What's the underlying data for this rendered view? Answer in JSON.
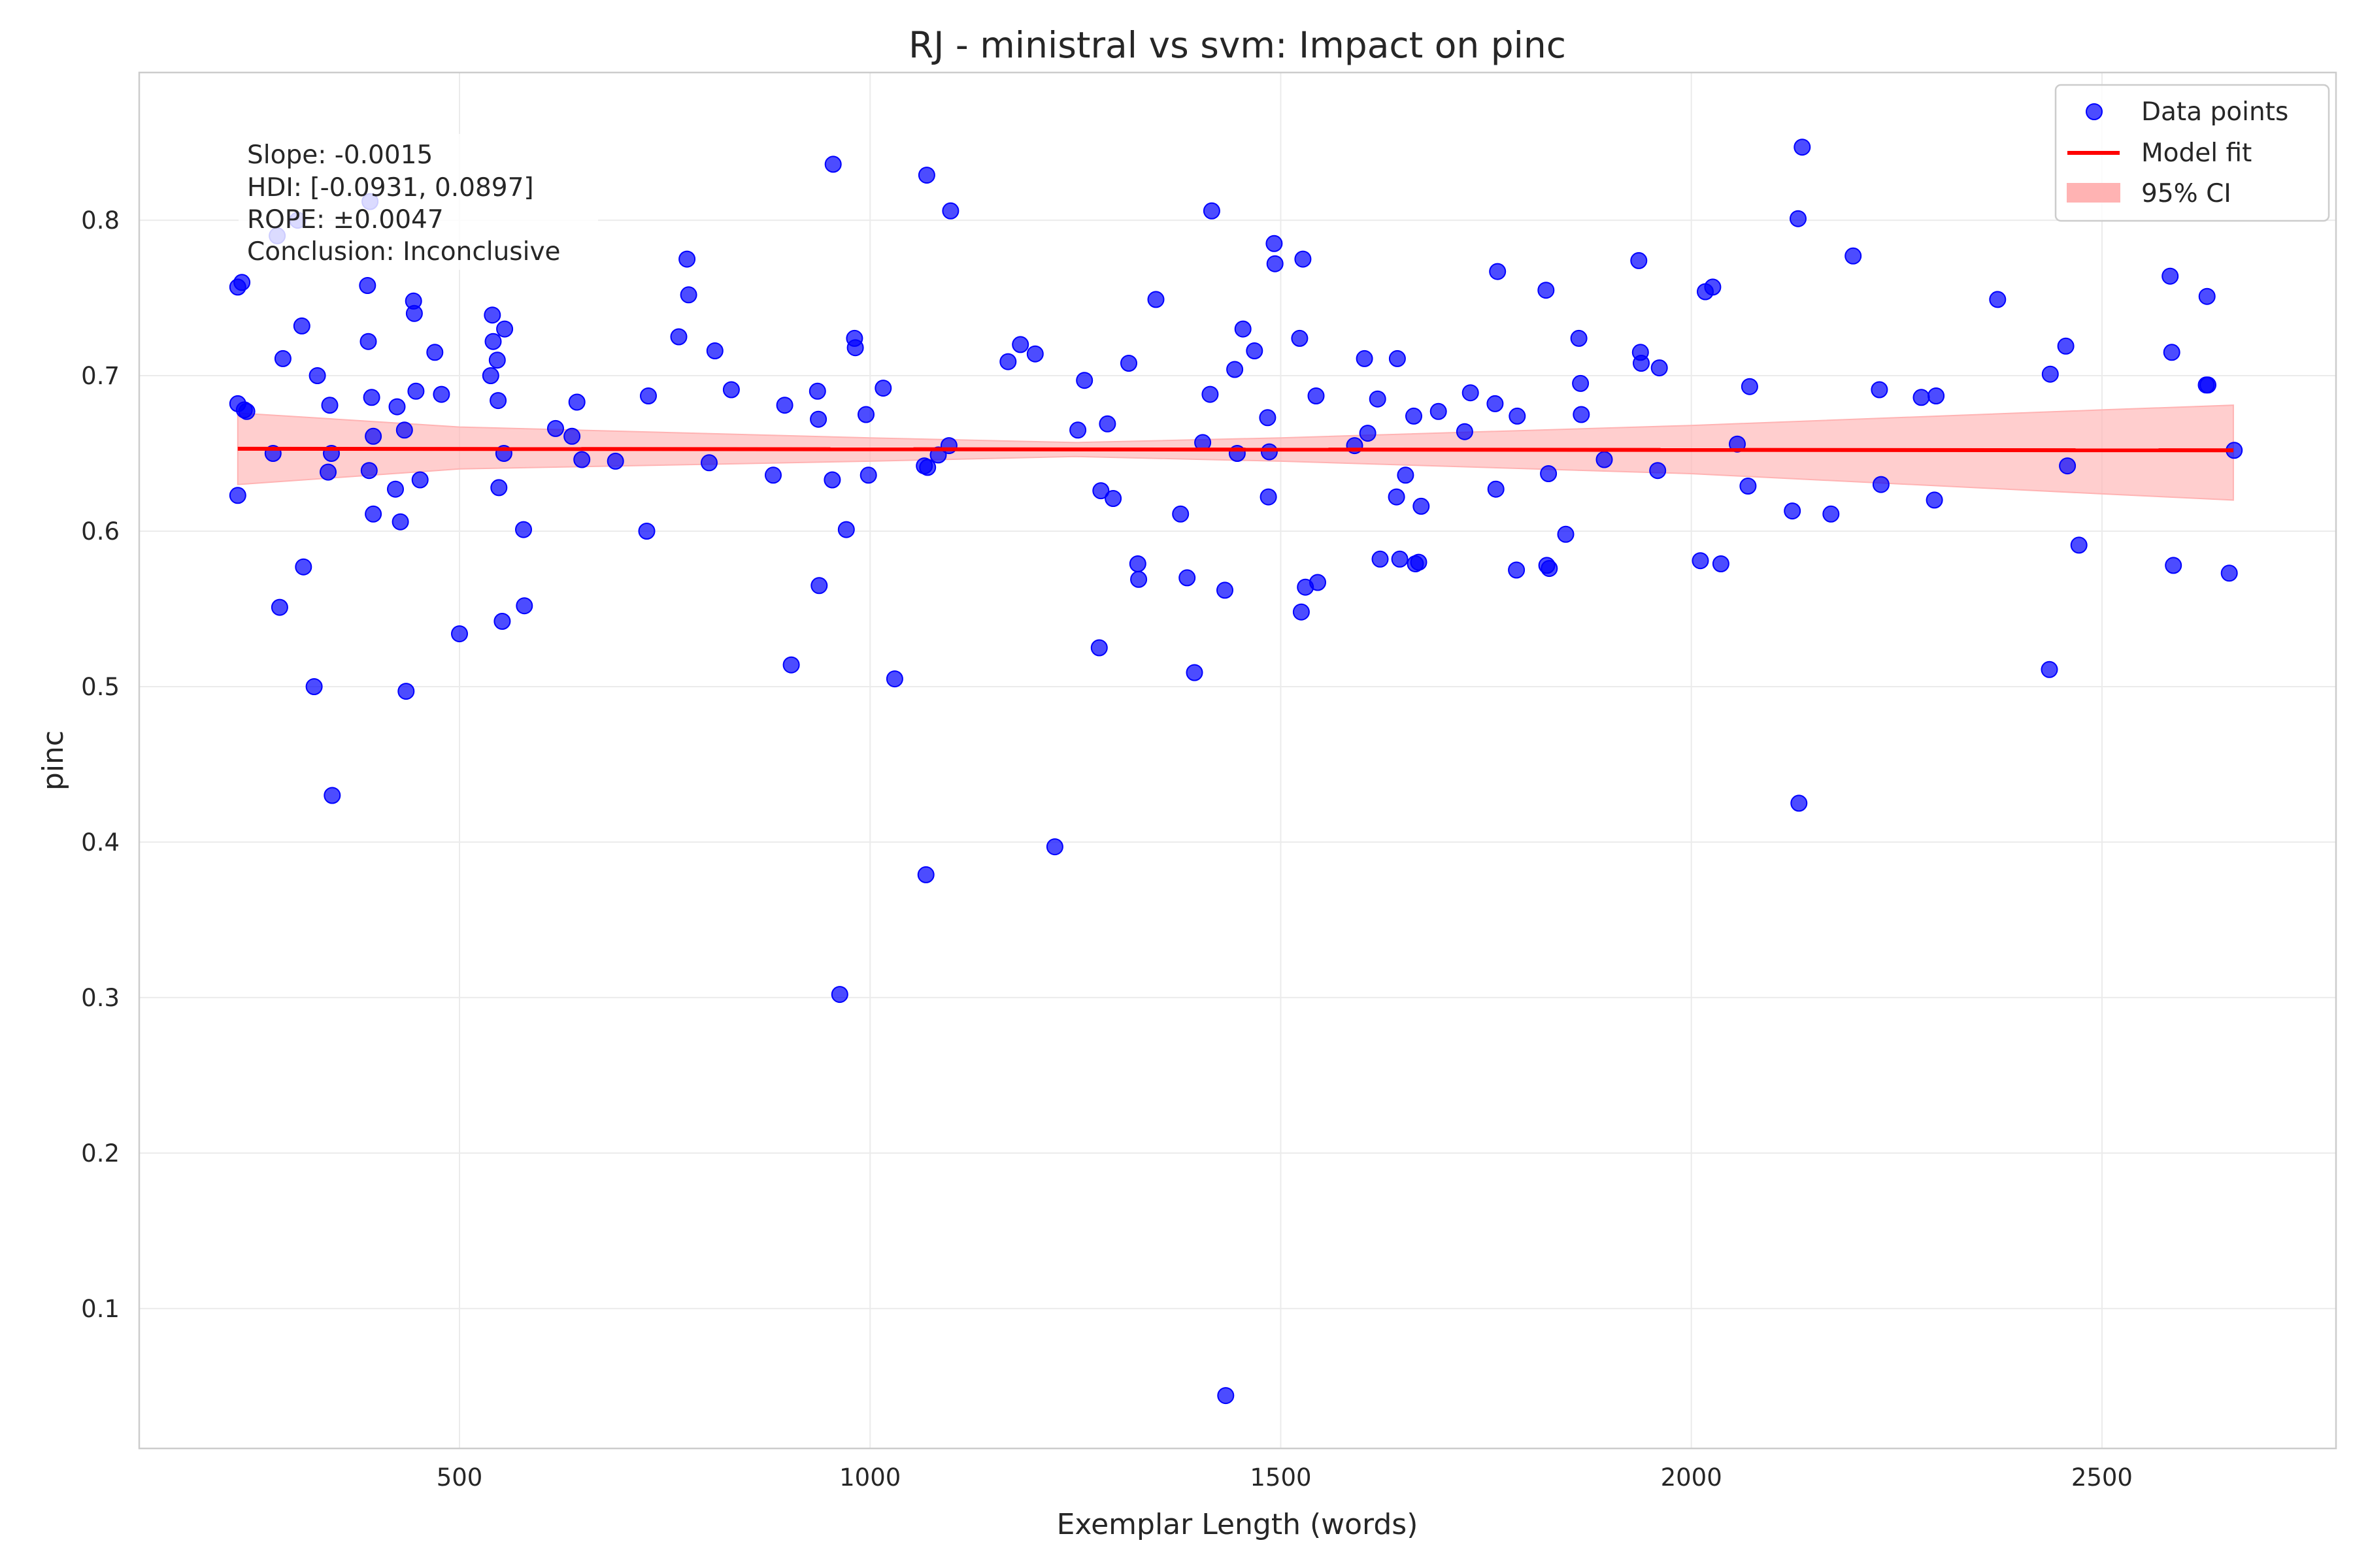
{
  "chart_data": {
    "type": "scatter",
    "title": "RJ - ministral vs svm: Impact on pinc",
    "xlabel": "Exemplar Length (words)",
    "ylabel": "pinc",
    "xlim": [
      110,
      2785
    ],
    "ylim": [
      0.01,
      0.895
    ],
    "x_ticks": [
      500,
      1000,
      1500,
      2000,
      2500
    ],
    "x_tick_labels": [
      "500",
      "1000",
      "1500",
      "2000",
      "2500"
    ],
    "y_ticks": [
      0.1,
      0.2,
      0.3,
      0.4,
      0.5,
      0.6,
      0.7,
      0.8
    ],
    "y_tick_labels": [
      "0.1",
      "0.2",
      "0.3",
      "0.4",
      "0.5",
      "0.6",
      "0.7",
      "0.8"
    ],
    "grid": true,
    "legend_position": "top-right",
    "colors": {
      "points": "#0000ff",
      "fit": "#ff0000",
      "ci_fill": "#ffb3b3"
    },
    "legend": [
      {
        "label": "Data points",
        "kind": "point"
      },
      {
        "label": "Model fit",
        "kind": "line"
      },
      {
        "label": "95% CI",
        "kind": "band"
      }
    ],
    "annotation": [
      "Slope: -0.0015",
      "HDI: [-0.0931, 0.0897]",
      "ROPE: ±0.0047",
      "Conclusion: Inconclusive"
    ],
    "model_fit": {
      "x": [
        230,
        2660
      ],
      "y": [
        0.653,
        0.652
      ]
    },
    "ci_band": {
      "x": [
        230,
        500,
        1000,
        1250,
        1500,
        2000,
        2500,
        2660
      ],
      "lower": [
        0.63,
        0.64,
        0.645,
        0.648,
        0.645,
        0.637,
        0.624,
        0.62
      ],
      "upper": [
        0.676,
        0.667,
        0.66,
        0.657,
        0.66,
        0.668,
        0.678,
        0.681
      ]
    },
    "series": [
      {
        "name": "Data points",
        "points": [
          [
            230,
            0.757
          ],
          [
            235,
            0.76
          ],
          [
            238,
            0.678
          ],
          [
            241,
            0.677
          ],
          [
            230,
            0.682
          ],
          [
            230,
            0.623
          ],
          [
            273,
            0.65
          ],
          [
            281,
            0.551
          ],
          [
            285,
            0.711
          ],
          [
            278,
            0.79
          ],
          [
            303,
            0.8
          ],
          [
            308,
            0.732
          ],
          [
            310,
            0.577
          ],
          [
            323,
            0.5
          ],
          [
            327,
            0.7
          ],
          [
            340,
            0.638
          ],
          [
            342,
            0.681
          ],
          [
            344,
            0.65
          ],
          [
            345,
            0.43
          ],
          [
            388,
            0.758
          ],
          [
            389,
            0.722
          ],
          [
            390,
            0.639
          ],
          [
            391,
            0.812
          ],
          [
            393,
            0.686
          ],
          [
            395,
            0.611
          ],
          [
            395,
            0.661
          ],
          [
            422,
            0.627
          ],
          [
            424,
            0.68
          ],
          [
            428,
            0.606
          ],
          [
            433,
            0.665
          ],
          [
            435,
            0.497
          ],
          [
            444,
            0.748
          ],
          [
            445,
            0.74
          ],
          [
            447,
            0.69
          ],
          [
            452,
            0.633
          ],
          [
            470,
            0.715
          ],
          [
            478,
            0.688
          ],
          [
            500,
            0.534
          ],
          [
            540,
            0.739
          ],
          [
            541,
            0.722
          ],
          [
            538,
            0.7
          ],
          [
            546,
            0.71
          ],
          [
            547,
            0.684
          ],
          [
            548,
            0.628
          ],
          [
            552,
            0.542
          ],
          [
            554,
            0.65
          ],
          [
            555,
            0.73
          ],
          [
            578,
            0.601
          ],
          [
            579,
            0.552
          ],
          [
            617,
            0.666
          ],
          [
            637,
            0.661
          ],
          [
            643,
            0.683
          ],
          [
            649,
            0.646
          ],
          [
            690,
            0.645
          ],
          [
            728,
            0.6
          ],
          [
            730,
            0.687
          ],
          [
            767,
            0.725
          ],
          [
            777,
            0.775
          ],
          [
            779,
            0.752
          ],
          [
            804,
            0.644
          ],
          [
            811,
            0.716
          ],
          [
            831,
            0.691
          ],
          [
            882,
            0.636
          ],
          [
            896,
            0.681
          ],
          [
            904,
            0.514
          ],
          [
            936,
            0.69
          ],
          [
            937,
            0.672
          ],
          [
            938,
            0.565
          ],
          [
            954,
            0.633
          ],
          [
            955,
            0.836
          ],
          [
            963,
            0.302
          ],
          [
            971,
            0.601
          ],
          [
            981,
            0.724
          ],
          [
            982,
            0.718
          ],
          [
            995,
            0.675
          ],
          [
            998,
            0.636
          ],
          [
            1016,
            0.692
          ],
          [
            1030,
            0.505
          ],
          [
            1066,
            0.642
          ],
          [
            1070,
            0.641
          ],
          [
            1068,
            0.379
          ],
          [
            1069,
            0.829
          ],
          [
            1083,
            0.649
          ],
          [
            1096,
            0.655
          ],
          [
            1098,
            0.806
          ],
          [
            1168,
            0.709
          ],
          [
            1183,
            0.72
          ],
          [
            1201,
            0.714
          ],
          [
            1225,
            0.397
          ],
          [
            1253,
            0.665
          ],
          [
            1261,
            0.697
          ],
          [
            1279,
            0.525
          ],
          [
            1281,
            0.626
          ],
          [
            1289,
            0.669
          ],
          [
            1296,
            0.621
          ],
          [
            1315,
            0.708
          ],
          [
            1326,
            0.579
          ],
          [
            1327,
            0.569
          ],
          [
            1348,
            0.749
          ],
          [
            1378,
            0.611
          ],
          [
            1386,
            0.57
          ],
          [
            1395,
            0.509
          ],
          [
            1405,
            0.657
          ],
          [
            1414,
            0.688
          ],
          [
            1416,
            0.806
          ],
          [
            1432,
            0.562
          ],
          [
            1433,
            0.044
          ],
          [
            1444,
            0.704
          ],
          [
            1447,
            0.65
          ],
          [
            1454,
            0.73
          ],
          [
            1468,
            0.716
          ],
          [
            1484,
            0.673
          ],
          [
            1485,
            0.622
          ],
          [
            1486,
            0.651
          ],
          [
            1492,
            0.785
          ],
          [
            1493,
            0.772
          ],
          [
            1523,
            0.724
          ],
          [
            1525,
            0.548
          ],
          [
            1527,
            0.775
          ],
          [
            1530,
            0.564
          ],
          [
            1543,
            0.687
          ],
          [
            1545,
            0.567
          ],
          [
            1590,
            0.655
          ],
          [
            1602,
            0.711
          ],
          [
            1606,
            0.663
          ],
          [
            1618,
            0.685
          ],
          [
            1621,
            0.582
          ],
          [
            1641,
            0.622
          ],
          [
            1642,
            0.711
          ],
          [
            1645,
            0.582
          ],
          [
            1652,
            0.636
          ],
          [
            1662,
            0.674
          ],
          [
            1664,
            0.579
          ],
          [
            1668,
            0.58
          ],
          [
            1671,
            0.616
          ],
          [
            1692,
            0.677
          ],
          [
            1724,
            0.664
          ],
          [
            1731,
            0.689
          ],
          [
            1761,
            0.682
          ],
          [
            1762,
            0.627
          ],
          [
            1764,
            0.767
          ],
          [
            1787,
            0.575
          ],
          [
            1788,
            0.674
          ],
          [
            1823,
            0.755
          ],
          [
            1824,
            0.578
          ],
          [
            1826,
            0.637
          ],
          [
            1827,
            0.576
          ],
          [
            1847,
            0.598
          ],
          [
            1863,
            0.724
          ],
          [
            1865,
            0.695
          ],
          [
            1866,
            0.675
          ],
          [
            1894,
            0.646
          ],
          [
            1936,
            0.774
          ],
          [
            1938,
            0.715
          ],
          [
            1939,
            0.708
          ],
          [
            1959,
            0.639
          ],
          [
            1961,
            0.705
          ],
          [
            2011,
            0.581
          ],
          [
            2017,
            0.754
          ],
          [
            2026,
            0.757
          ],
          [
            2036,
            0.579
          ],
          [
            2056,
            0.656
          ],
          [
            2069,
            0.629
          ],
          [
            2071,
            0.693
          ],
          [
            2123,
            0.613
          ],
          [
            2130,
            0.801
          ],
          [
            2131,
            0.425
          ],
          [
            2135,
            0.847
          ],
          [
            2170,
            0.611
          ],
          [
            2197,
            0.777
          ],
          [
            2229,
            0.691
          ],
          [
            2231,
            0.63
          ],
          [
            2280,
            0.686
          ],
          [
            2296,
            0.62
          ],
          [
            2298,
            0.687
          ],
          [
            2373,
            0.749
          ],
          [
            2436,
            0.511
          ],
          [
            2437,
            0.701
          ],
          [
            2456,
            0.719
          ],
          [
            2458,
            0.642
          ],
          [
            2472,
            0.591
          ],
          [
            2583,
            0.764
          ],
          [
            2585,
            0.715
          ],
          [
            2587,
            0.578
          ],
          [
            2627,
            0.694
          ],
          [
            2628,
            0.751
          ],
          [
            2629,
            0.694
          ],
          [
            2655,
            0.573
          ],
          [
            2661,
            0.652
          ]
        ]
      }
    ]
  }
}
